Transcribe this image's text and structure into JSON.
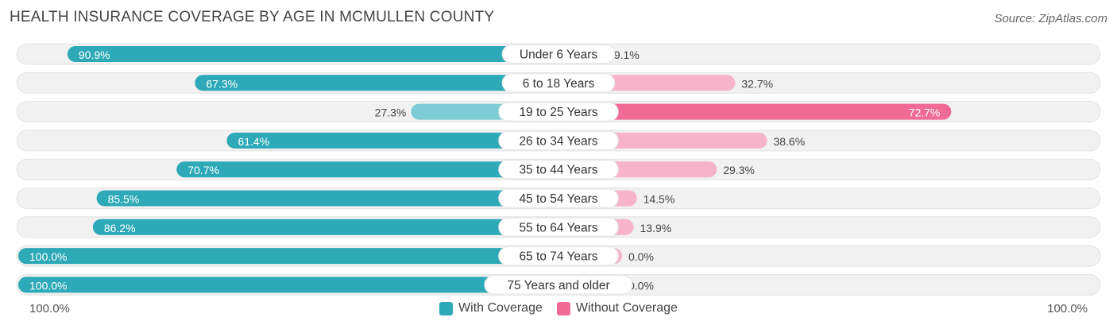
{
  "title": "HEALTH INSURANCE COVERAGE BY AGE IN MCMULLEN COUNTY",
  "source": "Source: ZipAtlas.com",
  "colors": {
    "with_strong": "#2ea9b8",
    "with_light": "#7dccd6",
    "without_strong": "#f06a96",
    "without_light": "#f7b3c9",
    "track": "#f1f1f1"
  },
  "chart_data": {
    "type": "bar",
    "title": "HEALTH INSURANCE COVERAGE BY AGE IN MCMULLEN COUNTY",
    "orientation": "horizontal-diverging",
    "categories": [
      "Under 6 Years",
      "6 to 18 Years",
      "19 to 25 Years",
      "26 to 34 Years",
      "35 to 44 Years",
      "45 to 54 Years",
      "55 to 64 Years",
      "65 to 74 Years",
      "75 Years and older"
    ],
    "series": [
      {
        "name": "With Coverage",
        "values": [
          90.9,
          67.3,
          27.3,
          61.4,
          70.7,
          85.5,
          86.2,
          100.0,
          100.0
        ]
      },
      {
        "name": "Without Coverage",
        "values": [
          9.1,
          32.7,
          72.7,
          38.6,
          29.3,
          14.5,
          13.9,
          0.0,
          0.0
        ]
      }
    ],
    "value_labels": {
      "with": [
        "90.9%",
        "67.3%",
        "27.3%",
        "61.4%",
        "70.7%",
        "85.5%",
        "86.2%",
        "100.0%",
        "100.0%"
      ],
      "without": [
        "9.1%",
        "32.7%",
        "72.7%",
        "38.6%",
        "29.3%",
        "14.5%",
        "13.9%",
        "0.0%",
        "0.0%"
      ]
    },
    "xlim": [
      0,
      100
    ],
    "axis_left_label": "100.0%",
    "axis_right_label": "100.0%",
    "legend": [
      "With Coverage",
      "Without Coverage"
    ]
  }
}
